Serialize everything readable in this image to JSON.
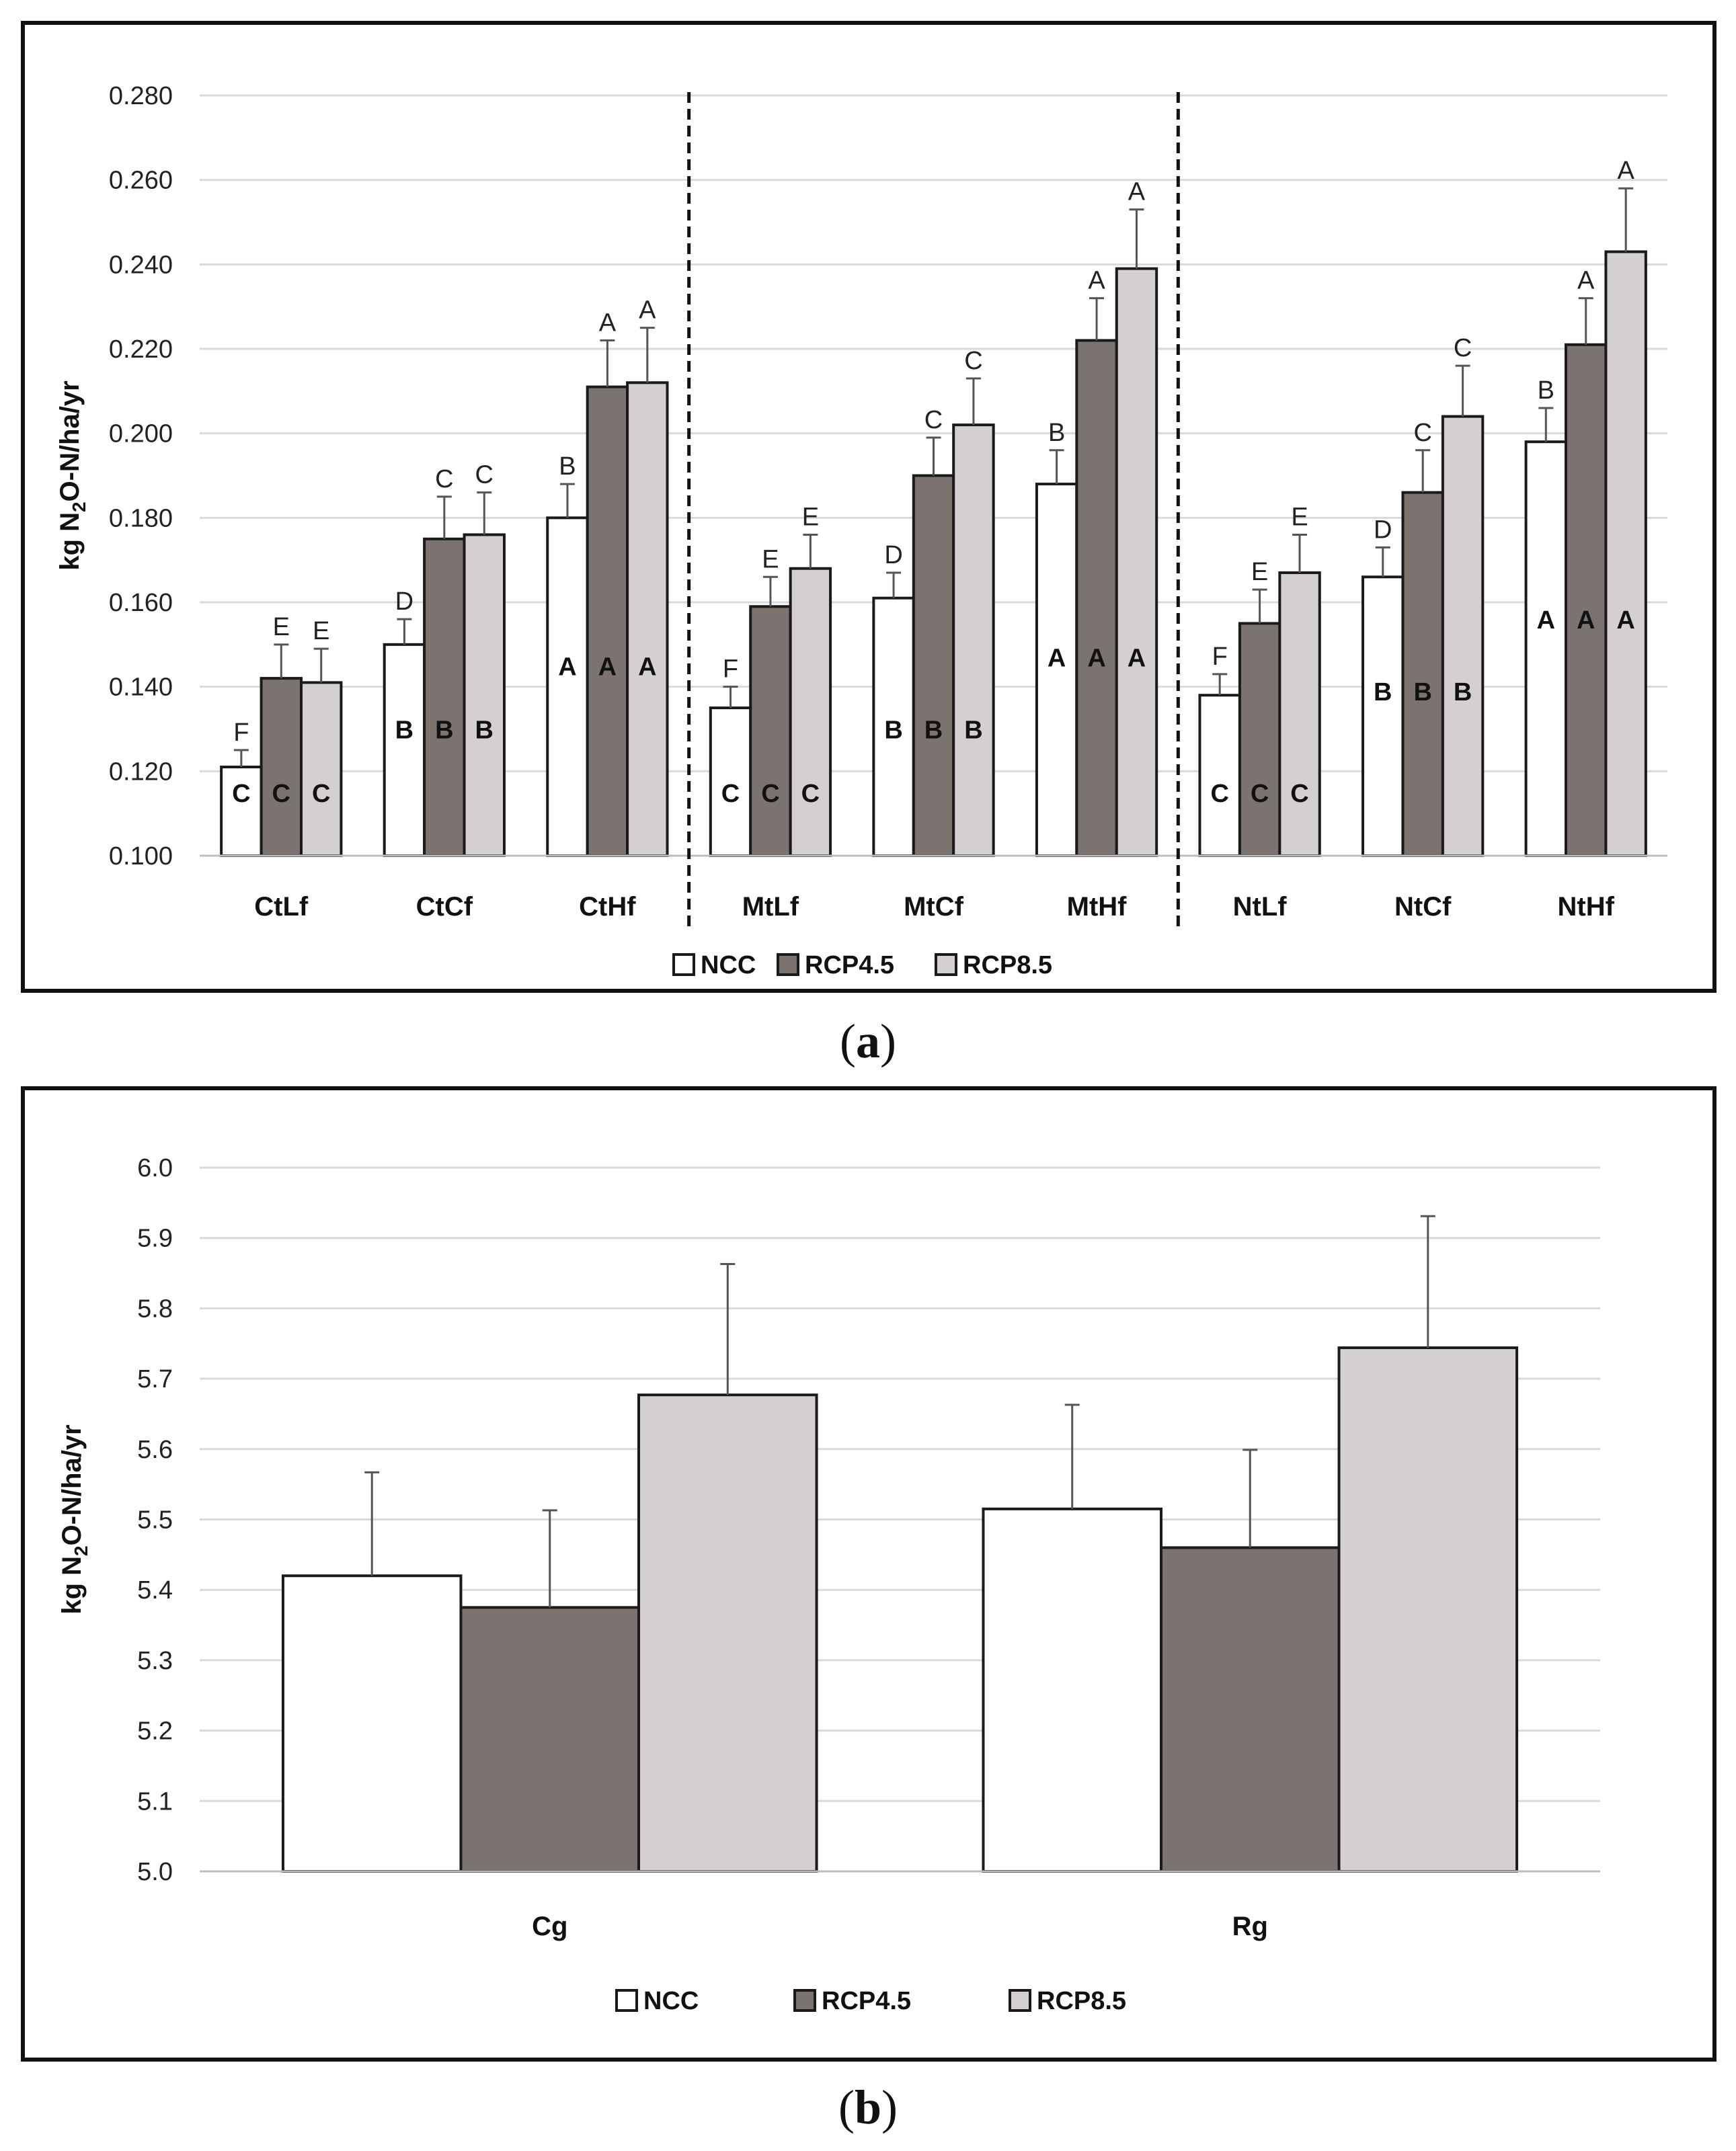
{
  "colors": {
    "NCC": "#ffffff",
    "RCP4.5": "#7a7370",
    "RCP8.5": "#d4d0d1",
    "grid": "#d9d9d9",
    "axis": "#333333"
  },
  "captions": {
    "a": "a",
    "b": "b"
  },
  "chart_data": [
    {
      "id": "a",
      "type": "bar",
      "title": "",
      "xlabel": "",
      "ylabel_parts": [
        "kg N",
        "2",
        "O-N/ha/yr"
      ],
      "ylim": [
        0.1,
        0.28
      ],
      "ytick_step": 0.02,
      "ytick_decimals": 3,
      "ytick_labels": [
        "0.100",
        "0.120",
        "0.140",
        "0.160",
        "0.180",
        "0.200",
        "0.220",
        "0.240",
        "0.260",
        "0.280"
      ],
      "categories": [
        "CtLf",
        "CtCf",
        "CtHf",
        "MtLf",
        "MtCf",
        "MtHf",
        "NtLf",
        "NtCf",
        "NtHf"
      ],
      "group_separators_after": [
        2,
        5
      ],
      "legend": [
        "NCC",
        "RCP4.5",
        "RCP8.5"
      ],
      "series": [
        {
          "name": "NCC",
          "values": [
            0.121,
            0.15,
            0.18,
            0.135,
            0.161,
            0.188,
            0.138,
            0.166,
            0.198
          ],
          "errors": [
            0.004,
            0.006,
            0.008,
            0.005,
            0.006,
            0.008,
            0.005,
            0.007,
            0.008
          ],
          "top_letters": [
            "F",
            "D",
            "B",
            "F",
            "D",
            "B",
            "F",
            "D",
            "B"
          ],
          "inner_letters": [
            "C",
            "B",
            "A",
            "C",
            "B",
            "A",
            "C",
            "B",
            "A"
          ]
        },
        {
          "name": "RCP4.5",
          "values": [
            0.142,
            0.175,
            0.211,
            0.159,
            0.19,
            0.222,
            0.155,
            0.186,
            0.221
          ],
          "errors": [
            0.008,
            0.01,
            0.011,
            0.007,
            0.009,
            0.01,
            0.008,
            0.01,
            0.011
          ],
          "top_letters": [
            "E",
            "C",
            "A",
            "E",
            "C",
            "A",
            "E",
            "C",
            "A"
          ],
          "inner_letters": [
            "C",
            "B",
            "A",
            "C",
            "B",
            "A",
            "C",
            "B",
            "A"
          ]
        },
        {
          "name": "RCP8.5",
          "values": [
            0.141,
            0.176,
            0.212,
            0.168,
            0.202,
            0.239,
            0.167,
            0.204,
            0.243
          ],
          "errors": [
            0.008,
            0.01,
            0.013,
            0.008,
            0.011,
            0.014,
            0.009,
            0.012,
            0.015
          ],
          "top_letters": [
            "E",
            "C",
            "A",
            "E",
            "C",
            "A",
            "E",
            "C",
            "A"
          ],
          "inner_letters": [
            "C",
            "B",
            "A",
            "C",
            "B",
            "A",
            "C",
            "B",
            "A"
          ]
        }
      ]
    },
    {
      "id": "b",
      "type": "bar",
      "title": "",
      "xlabel": "",
      "ylabel_parts": [
        "kg N",
        "2",
        "O-N/ha/yr"
      ],
      "ylim": [
        5.0,
        6.0
      ],
      "ytick_step": 0.1,
      "ytick_decimals": 1,
      "ytick_labels": [
        "5.0",
        "5.1",
        "5.2",
        "5.3",
        "5.4",
        "5.5",
        "5.6",
        "5.7",
        "5.8",
        "5.9",
        "6.0"
      ],
      "categories": [
        "Cg",
        "Rg"
      ],
      "group_separators_after": [],
      "legend": [
        "NCC",
        "RCP4.5",
        "RCP8.5"
      ],
      "series": [
        {
          "name": "NCC",
          "values": [
            5.42,
            5.515
          ],
          "errors": [
            0.147,
            0.148
          ]
        },
        {
          "name": "RCP4.5",
          "values": [
            5.375,
            5.46
          ],
          "errors": [
            0.138,
            0.139
          ]
        },
        {
          "name": "RCP8.5",
          "values": [
            5.677,
            5.744
          ],
          "errors": [
            0.186,
            0.187
          ]
        }
      ]
    }
  ]
}
